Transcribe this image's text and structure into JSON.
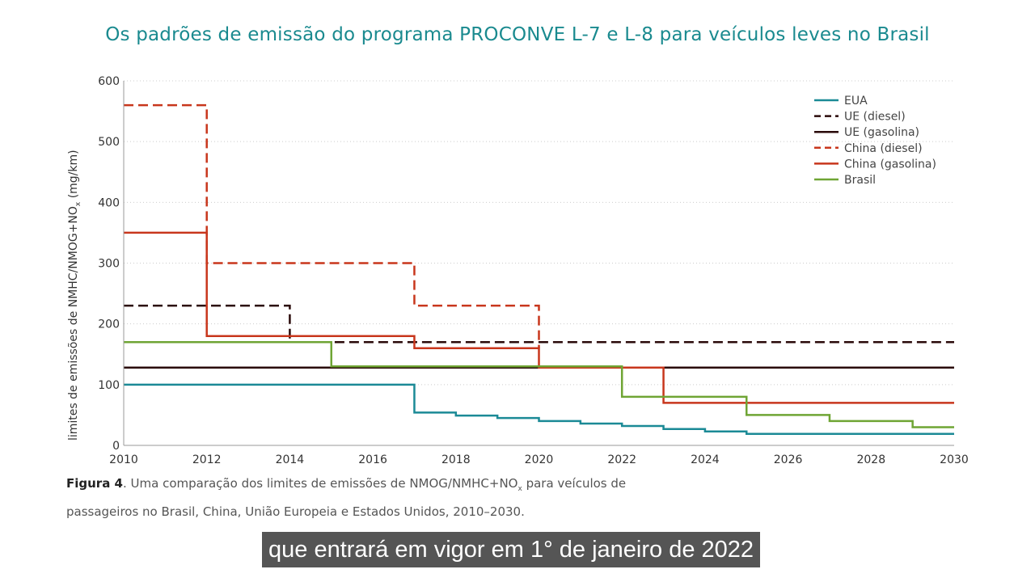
{
  "title": "Os padrões de emissão do programa PROCONVE L-7 e L-8 para veículos leves no Brasil",
  "caption": {
    "label": "Figura 4",
    "text_1": ". Uma comparação dos limites de emissões de NMOG/NMHC+NO",
    "sub": "x",
    "text_2": " para veículos de passageiros no Brasil, China, União Europeia e Estados Unidos, 2010–2030."
  },
  "subtitle_overlay": "que entrará em vigor em 1° de janeiro de 2022",
  "chart_data": {
    "type": "line",
    "step": true,
    "ylabel": "limites de emissões de NMHC/NMOG+NO",
    "ylabel_sub": "x",
    "ylabel_unit": " (mg/km)",
    "xlim": [
      2010,
      2030
    ],
    "ylim": [
      0,
      600
    ],
    "xticks": [
      "2010",
      "2012",
      "2014",
      "2016",
      "2018",
      "2020",
      "2022",
      "2024",
      "2026",
      "2028",
      "2030"
    ],
    "yticks": [
      "0",
      "100",
      "200",
      "300",
      "400",
      "500",
      "600"
    ],
    "grid": "horizontal dotted",
    "legend_position": "top-right",
    "series": [
      {
        "name": "EUA",
        "color": "#1b8a96",
        "dashed": false,
        "steps": [
          [
            2010,
            100
          ],
          [
            2017,
            54
          ],
          [
            2018,
            49
          ],
          [
            2019,
            45
          ],
          [
            2020,
            40
          ],
          [
            2021,
            36
          ],
          [
            2022,
            32
          ],
          [
            2023,
            27
          ],
          [
            2024,
            23
          ],
          [
            2025,
            19
          ],
          [
            2030,
            19
          ]
        ]
      },
      {
        "name": "UE (diesel)",
        "color": "#2a0a0a",
        "dashed": true,
        "steps": [
          [
            2010,
            230
          ],
          [
            2014,
            170
          ],
          [
            2030,
            170
          ]
        ]
      },
      {
        "name": "UE (gasolina)",
        "color": "#2a0a0a",
        "dashed": false,
        "steps": [
          [
            2010,
            128
          ],
          [
            2030,
            128
          ]
        ]
      },
      {
        "name": "China (diesel)",
        "color": "#c8361c",
        "dashed": true,
        "steps": [
          [
            2010,
            560
          ],
          [
            2012,
            300
          ],
          [
            2017,
            230
          ],
          [
            2020,
            160
          ]
        ]
      },
      {
        "name": "China (gasolina)",
        "color": "#c8361c",
        "dashed": false,
        "steps": [
          [
            2010,
            350
          ],
          [
            2012,
            180
          ],
          [
            2017,
            160
          ],
          [
            2020,
            128
          ],
          [
            2023,
            70
          ],
          [
            2030,
            70
          ]
        ]
      },
      {
        "name": "Brasil",
        "color": "#6fa534",
        "dashed": false,
        "steps": [
          [
            2010,
            170
          ],
          [
            2015,
            130
          ],
          [
            2022,
            80
          ],
          [
            2025,
            50
          ],
          [
            2027,
            40
          ],
          [
            2029,
            30
          ],
          [
            2030,
            30
          ]
        ]
      }
    ]
  }
}
